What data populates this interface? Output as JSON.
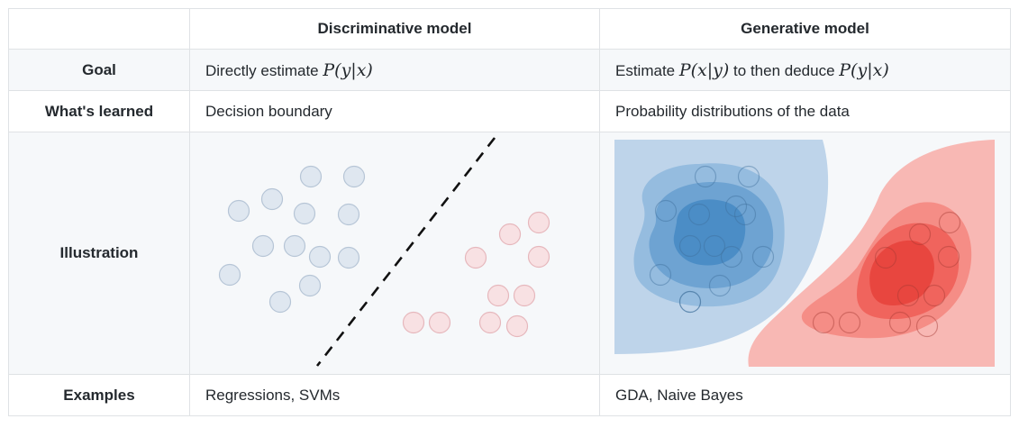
{
  "header": {
    "col1": "Discriminative model",
    "col2": "Generative model"
  },
  "rows": {
    "goal": {
      "label": "Goal",
      "disc_text": "Directly estimate ",
      "disc_math": "P(y|x)",
      "gen_text1": "Estimate ",
      "gen_math1": "P(x|y)",
      "gen_text2": " to then deduce ",
      "gen_math2": "P(y|x)"
    },
    "learned": {
      "label": "What's learned",
      "disc": "Decision boundary",
      "gen": "Probability distributions of the data"
    },
    "illustration": {
      "label": "Illustration"
    },
    "examples": {
      "label": "Examples",
      "disc": "Regressions, SVMs",
      "gen": "GDA, Naive Bayes"
    }
  },
  "colors": {
    "border": "#dfe2e5",
    "stripe": "#f6f8fa",
    "blue_point": "#dfe7f0",
    "red_point": "#f8e1e3",
    "blue_contour": [
      "#bed4ea",
      "#95bcdf",
      "#6ea3d2",
      "#4b8dc6"
    ],
    "red_contour": [
      "#f8b8b4",
      "#f58d86",
      "#f0645d",
      "#e8463f"
    ]
  }
}
